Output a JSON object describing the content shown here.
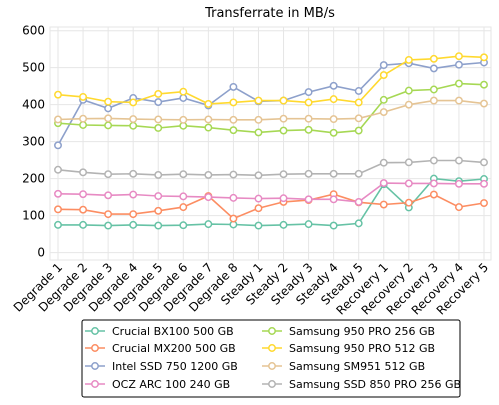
{
  "chart_data": {
    "type": "line",
    "title": "Transferrate in MB/s",
    "xlabel": "",
    "ylabel": "",
    "ylim": [
      -20,
      610
    ],
    "yticks": [
      0,
      100,
      200,
      300,
      400,
      500,
      600
    ],
    "grid": true,
    "legend_position": "bottom",
    "categories": [
      "Degrade 1",
      "Degrade 2",
      "Degrade 3",
      "Degrade 4",
      "Degrade 5",
      "Degrade 6",
      "Degrade 7",
      "Degrade 8",
      "Steady 1",
      "Steady 2",
      "Steady 3",
      "Steady 4",
      "Steady 5",
      "Recovery 1",
      "Recovery 2",
      "Recovery 3",
      "Recovery 4",
      "Recovery 5"
    ],
    "series": [
      {
        "name": "Crucial BX100 500 GB",
        "color": "#66c2a5",
        "values": [
          75,
          75,
          73,
          75,
          73,
          74,
          77,
          76,
          73,
          75,
          77,
          73,
          79,
          185,
          122,
          200,
          193,
          199
        ]
      },
      {
        "name": "Crucial MX200 500 GB",
        "color": "#fc8d62",
        "values": [
          117,
          116,
          104,
          104,
          113,
          123,
          153,
          92,
          120,
          137,
          142,
          158,
          136,
          130,
          135,
          157,
          123,
          134
        ]
      },
      {
        "name": "Intel SSD 750 1200 GB",
        "color": "#8da0cb",
        "values": [
          290,
          413,
          390,
          418,
          407,
          418,
          398,
          448,
          409,
          411,
          434,
          451,
          437,
          507,
          512,
          498,
          508,
          514
        ]
      },
      {
        "name": "OCZ ARC 100 240 GB",
        "color": "#e78ac3",
        "values": [
          159,
          158,
          155,
          157,
          153,
          152,
          150,
          148,
          146,
          147,
          144,
          144,
          137,
          188,
          187,
          187,
          186,
          186
        ]
      },
      {
        "name": "Samsung 950 PRO 256 GB",
        "color": "#a6d854",
        "values": [
          350,
          345,
          344,
          343,
          337,
          343,
          338,
          331,
          325,
          330,
          332,
          324,
          330,
          413,
          438,
          441,
          457,
          454
        ]
      },
      {
        "name": "Samsung 950 PRO 512 GB",
        "color": "#ffd92f",
        "values": [
          427,
          421,
          408,
          406,
          429,
          435,
          402,
          406,
          411,
          411,
          406,
          415,
          406,
          480,
          521,
          524,
          531,
          528
        ]
      },
      {
        "name": "Samsung SM951 512 GB",
        "color": "#e5c494",
        "values": [
          360,
          362,
          363,
          361,
          360,
          359,
          360,
          359,
          359,
          362,
          362,
          361,
          363,
          380,
          400,
          411,
          411,
          403
        ]
      },
      {
        "name": "Samsung SSD 850 PRO 256 GB",
        "color": "#b3b3b3",
        "values": [
          224,
          217,
          212,
          213,
          210,
          212,
          210,
          211,
          209,
          212,
          213,
          213,
          213,
          243,
          244,
          249,
          249,
          244
        ]
      }
    ]
  }
}
